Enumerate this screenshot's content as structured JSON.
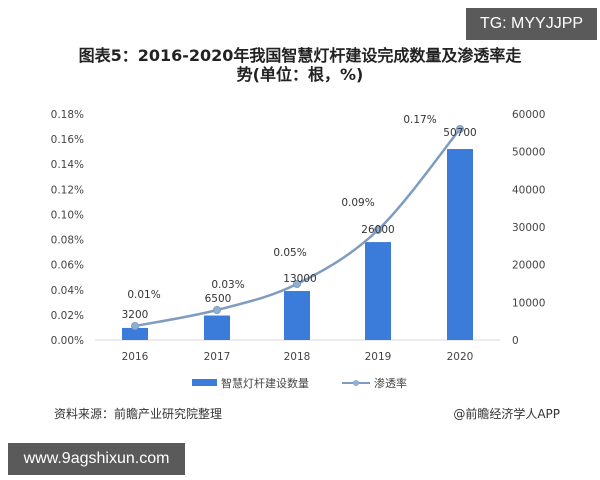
{
  "watermark_badges": {
    "top_right": "TG: MYYJJPP",
    "bottom_left": "www.9agshixun.com"
  },
  "title_line1": "图表5：2016-2020年我国智慧灯杆建设完成数量及渗透率走",
  "title_line2": "势(单位：根，%)",
  "footer": {
    "source": "资料来源：前瞻产业研究院整理",
    "credit": "@前瞻经济学人APP"
  },
  "colors": {
    "bar": "#3b7bd9",
    "line": "#7f9cc0",
    "marker": "#8fb0d6"
  },
  "chart_data": {
    "type": "bar+line",
    "title": "图表5：2016-2020年我国智慧灯杆建设完成数量及渗透率走势(单位：根，%)",
    "categories": [
      "2016",
      "2017",
      "2018",
      "2019",
      "2020"
    ],
    "series": [
      {
        "name": "智慧灯杆建设数量",
        "type": "bar",
        "axis": "right",
        "values": [
          3200,
          6500,
          13000,
          26000,
          50700
        ],
        "labels": [
          "3200",
          "6500",
          "13000",
          "26000",
          "50700"
        ]
      },
      {
        "name": "渗透率",
        "type": "line",
        "axis": "left",
        "values": [
          0.01,
          0.03,
          0.05,
          0.09,
          0.17
        ],
        "labels": [
          "0.01%",
          "0.03%",
          "0.05%",
          "0.09%",
          "0.17%"
        ]
      }
    ],
    "left_axis": {
      "ticks": [
        "0.00%",
        "0.02%",
        "0.04%",
        "0.06%",
        "0.08%",
        "0.10%",
        "0.12%",
        "0.14%",
        "0.16%",
        "0.18%"
      ],
      "range": [
        0,
        0.18
      ]
    },
    "right_axis": {
      "ticks": [
        "0",
        "10000",
        "20000",
        "30000",
        "40000",
        "50000",
        "60000"
      ],
      "range": [
        0,
        60000
      ]
    },
    "legend": [
      "智慧灯杆建设数量",
      "渗透率"
    ],
    "legend_position": "bottom",
    "grid": false
  }
}
